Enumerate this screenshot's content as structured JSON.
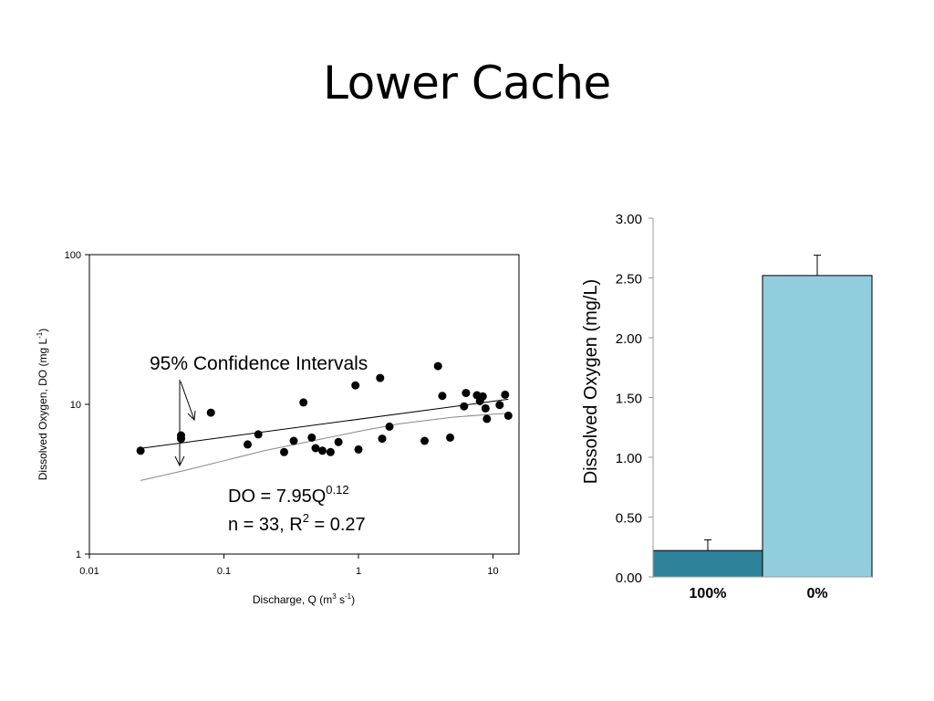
{
  "slide": {
    "title": "Lower Cache"
  },
  "chart_data": [
    {
      "type": "scatter",
      "title": "",
      "xlabel": "Discharge, Q (m",
      "xlabel_sup1": "3",
      "xlabel_mid": " s",
      "xlabel_sup2": "-1",
      "xlabel_end": ")",
      "ylabel": "Dissolved Oxygen, DO (mg L",
      "ylabel_sup": "-1",
      "ylabel_end": ")",
      "xscale": "log",
      "yscale": "log",
      "xlim": [
        0.01,
        15
      ],
      "ylim": [
        1,
        100
      ],
      "x_ticks": [
        {
          "value": 0.01,
          "label": "0.01"
        },
        {
          "value": 0.1,
          "label": "0.1"
        },
        {
          "value": 1,
          "label": "1"
        },
        {
          "value": 10,
          "label": "10"
        }
      ],
      "y_ticks": [
        {
          "value": 1,
          "label": "1"
        },
        {
          "value": 10,
          "label": "10"
        },
        {
          "value": 100,
          "label": "100"
        }
      ],
      "points": [
        {
          "x": 0.024,
          "y": 4.9
        },
        {
          "x": 0.048,
          "y": 6.2
        },
        {
          "x": 0.048,
          "y": 5.9
        },
        {
          "x": 0.08,
          "y": 8.8
        },
        {
          "x": 0.15,
          "y": 5.4
        },
        {
          "x": 0.18,
          "y": 6.3
        },
        {
          "x": 0.28,
          "y": 4.8
        },
        {
          "x": 0.33,
          "y": 5.7
        },
        {
          "x": 0.39,
          "y": 10.3
        },
        {
          "x": 0.45,
          "y": 6.0
        },
        {
          "x": 0.48,
          "y": 5.1
        },
        {
          "x": 0.54,
          "y": 4.9
        },
        {
          "x": 0.62,
          "y": 4.8
        },
        {
          "x": 0.71,
          "y": 5.6
        },
        {
          "x": 0.95,
          "y": 13.4
        },
        {
          "x": 1.0,
          "y": 5.0
        },
        {
          "x": 1.45,
          "y": 15.0
        },
        {
          "x": 1.5,
          "y": 5.9
        },
        {
          "x": 1.7,
          "y": 7.1
        },
        {
          "x": 3.1,
          "y": 5.7
        },
        {
          "x": 3.9,
          "y": 18.0
        },
        {
          "x": 4.2,
          "y": 11.4
        },
        {
          "x": 4.8,
          "y": 6.0
        },
        {
          "x": 6.1,
          "y": 9.7
        },
        {
          "x": 6.3,
          "y": 11.9
        },
        {
          "x": 7.6,
          "y": 11.5
        },
        {
          "x": 8.0,
          "y": 10.5
        },
        {
          "x": 8.4,
          "y": 11.3
        },
        {
          "x": 8.8,
          "y": 9.4
        },
        {
          "x": 9.0,
          "y": 8.0
        },
        {
          "x": 11.2,
          "y": 9.9
        },
        {
          "x": 12.3,
          "y": 11.6
        },
        {
          "x": 13.0,
          "y": 8.4
        }
      ],
      "fit_line": {
        "x": [
          0.024,
          13
        ],
        "coef": 7.95,
        "exp": 0.12
      },
      "ci_line": {
        "x": [
          0.024,
          0.05,
          0.1,
          0.2,
          0.5,
          1,
          2,
          5,
          10,
          13
        ],
        "y": [
          3.1,
          3.6,
          4.2,
          4.9,
          5.8,
          6.6,
          7.4,
          8.2,
          8.6,
          8.7
        ]
      },
      "annotations": {
        "ci_label": "95% Confidence Intervals",
        "equation_prefix": "DO = 7.95Q",
        "equation_exp": "0.12",
        "stats_prefix": "n = 33, R",
        "stats_sup": "2",
        "stats_suffix": " = 0.27"
      }
    },
    {
      "type": "bar",
      "title": "",
      "ylabel": "Dissolved Oxygen (mg/L)",
      "xlabel": "",
      "ylim": [
        0,
        3
      ],
      "y_ticks": [
        "0.00",
        "0.50",
        "1.00",
        "1.50",
        "2.00",
        "2.50",
        "3.00"
      ],
      "categories": [
        "100%",
        "0%"
      ],
      "values": [
        0.22,
        2.52
      ],
      "errors": [
        0.09,
        0.17
      ],
      "colors": [
        "#2e8299",
        "#92cddd"
      ]
    }
  ]
}
